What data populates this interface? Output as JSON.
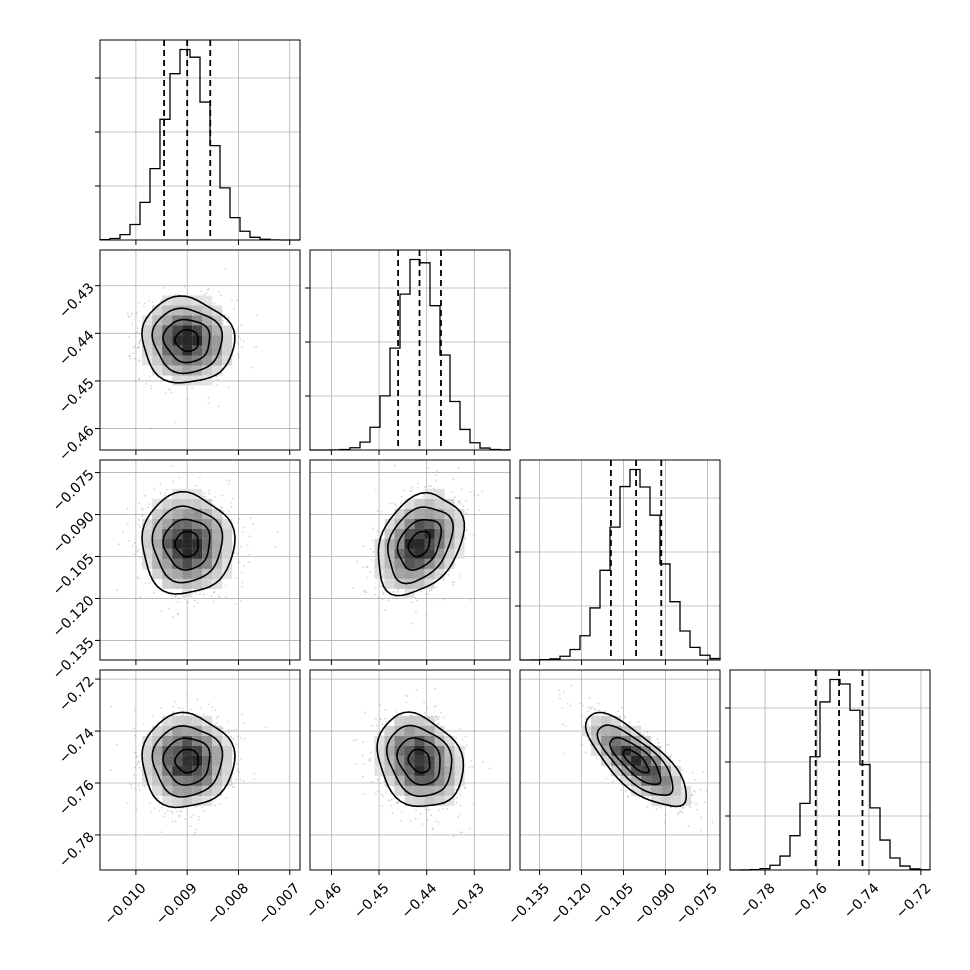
{
  "chart_data": {
    "type": "corner",
    "params": [
      {
        "range": [
          -0.0107,
          -0.0068
        ],
        "ticks": [
          -0.01,
          -0.009,
          -0.008,
          -0.007
        ],
        "tick_labels": [
          "−0.010",
          "−0.009",
          "−0.008",
          "−0.007"
        ],
        "median": -0.009,
        "lo": -0.00945,
        "hi": -0.00855,
        "sigma": 0.00045
      },
      {
        "range": [
          -0.4645,
          -0.4225
        ],
        "ticks": [
          -0.46,
          -0.45,
          -0.44,
          -0.43
        ],
        "tick_labels": [
          "−0.46",
          "−0.45",
          "−0.44",
          "−0.43"
        ],
        "median": -0.4415,
        "lo": -0.446,
        "hi": -0.437,
        "sigma": 0.0045
      },
      {
        "range": [
          -0.142,
          -0.0705
        ],
        "ticks": [
          -0.135,
          -0.12,
          -0.105,
          -0.09,
          -0.075
        ],
        "tick_labels": [
          "−0.135",
          "−0.120",
          "−0.105",
          "−0.090",
          "−0.075"
        ],
        "median": -0.1005,
        "lo": -0.1095,
        "hi": -0.0915,
        "sigma": 0.009
      },
      {
        "range": [
          -0.7935,
          -0.7165
        ],
        "ticks": [
          -0.78,
          -0.76,
          -0.74,
          -0.72
        ],
        "tick_labels": [
          "−0.78",
          "−0.76",
          "−0.74",
          "−0.72"
        ],
        "median": -0.7515,
        "lo": -0.7605,
        "hi": -0.7425,
        "sigma": 0.009
      }
    ],
    "correlations": [
      {
        "i": 0,
        "j": 1,
        "rho": -0.05
      },
      {
        "i": 0,
        "j": 2,
        "rho": 0.0
      },
      {
        "i": 1,
        "j": 2,
        "rho": 0.3
      },
      {
        "i": 0,
        "j": 3,
        "rho": 0.0
      },
      {
        "i": 1,
        "j": 3,
        "rho": -0.2
      },
      {
        "i": 2,
        "j": 3,
        "rho": -0.75
      }
    ],
    "histogram_bins": 20,
    "grid": true,
    "xlabel": "",
    "ylabel": ""
  }
}
